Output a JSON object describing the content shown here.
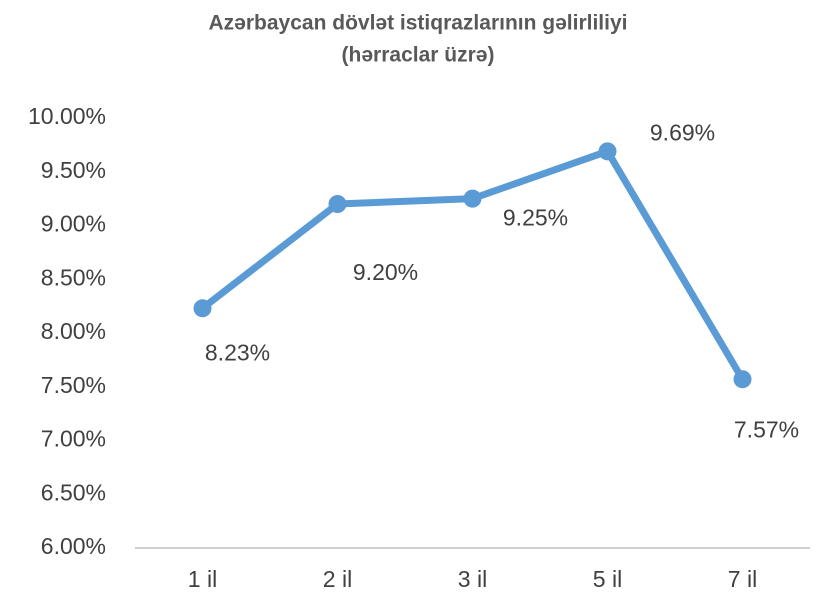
{
  "chart_data": {
    "type": "line",
    "title": "Azərbaycan dövlət istiqrazlarının gəlirliliyi",
    "subtitle": "(hərraclar üzrə)",
    "categories": [
      "1 il",
      "2 il",
      "3 il",
      "5 il",
      "7 il"
    ],
    "series": [
      {
        "color": "#5b9bd5",
        "values": [
          8.23,
          9.2,
          9.25,
          9.69,
          7.57
        ],
        "value_labels": [
          "8.23%",
          "9.20%",
          "9.25%",
          "9.69%",
          "7.57%"
        ]
      }
    ],
    "ylim": [
      6,
      10
    ],
    "yticks": [
      {
        "value": 6,
        "label": "6.00%"
      },
      {
        "value": 6.5,
        "label": "6.50%"
      },
      {
        "value": 7,
        "label": "7.00%"
      },
      {
        "value": 7.5,
        "label": "7.50%"
      },
      {
        "value": 8,
        "label": "8.00%"
      },
      {
        "value": 8.5,
        "label": "8.50%"
      },
      {
        "value": 9,
        "label": "9.00%"
      },
      {
        "value": 9.5,
        "label": "9.50%"
      },
      {
        "value": 10,
        "label": "10.00%"
      }
    ],
    "grid": false
  }
}
